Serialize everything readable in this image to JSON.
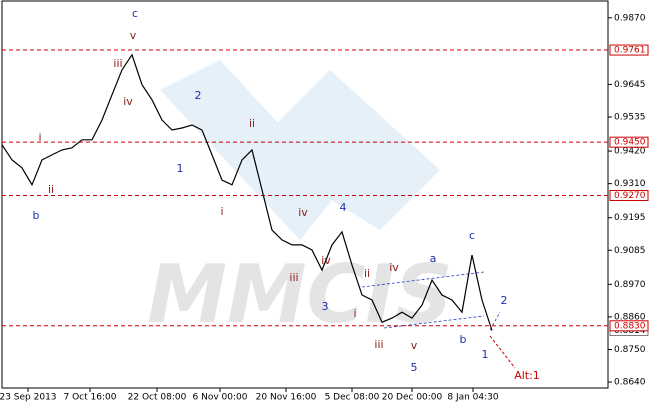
{
  "chart_data": {
    "type": "line",
    "watermark": "MMCIS",
    "x": [
      0,
      1,
      2,
      3,
      4,
      5,
      6,
      7,
      8,
      9,
      10,
      11,
      12,
      13,
      14,
      15,
      16,
      17,
      18,
      19,
      20,
      21,
      22,
      23,
      24,
      25,
      26,
      27,
      28,
      29,
      30,
      31,
      32,
      33,
      34,
      35,
      36,
      37,
      38,
      39,
      40,
      41,
      42,
      43,
      44,
      45,
      46,
      47,
      48,
      49
    ],
    "series": [
      {
        "color": "#000000",
        "values": [
          0.9441,
          0.939,
          0.9363,
          0.9306,
          0.939,
          0.9407,
          0.9424,
          0.9431,
          0.9458,
          0.9458,
          0.9525,
          0.961,
          0.9694,
          0.9745,
          0.9644,
          0.9593,
          0.9525,
          0.9491,
          0.9498,
          0.9508,
          0.9491,
          0.9407,
          0.9322,
          0.9306,
          0.939,
          0.9424,
          0.9289,
          0.9153,
          0.912,
          0.9103,
          0.9103,
          0.9086,
          0.9018,
          0.9103,
          0.9147,
          0.9035,
          0.8934,
          0.8917,
          0.8842,
          0.8856,
          0.8876,
          0.8856,
          0.89,
          0.8984,
          0.8934,
          0.8917,
          0.8876,
          0.9069,
          0.8917,
          0.8814
        ]
      }
    ],
    "xlim": [
      0,
      60.6
    ],
    "xticks": [
      {
        "value": 2.6,
        "label": "23 Sep 2013"
      },
      {
        "value": 8.8,
        "label": "7 Oct 16:00"
      },
      {
        "value": 15.5,
        "label": "22 Oct 08:00"
      },
      {
        "value": 21.8,
        "label": "6 Nov 00:00"
      },
      {
        "value": 28.4,
        "label": "20 Nov 16:00"
      },
      {
        "value": 35,
        "label": "5 Dec 08:00"
      },
      {
        "value": 41,
        "label": "20 Dec 00:00"
      },
      {
        "value": 47.1,
        "label": "8 Jan 04:30"
      }
    ],
    "ylim": [
      0.862,
      0.993
    ],
    "yticks": [
      {
        "value": 0.987,
        "label": "0.9870"
      },
      {
        "value": 0.9645,
        "label": "0.9645"
      },
      {
        "value": 0.9535,
        "label": "0.9535"
      },
      {
        "value": 0.942,
        "label": "0.9420"
      },
      {
        "value": 0.931,
        "label": "0.9310"
      },
      {
        "value": 0.9195,
        "label": "0.9195"
      },
      {
        "value": 0.9085,
        "label": "0.9085"
      },
      {
        "value": 0.897,
        "label": "0.8970"
      },
      {
        "value": 0.886,
        "label": "0.8860"
      },
      {
        "value": 0.875,
        "label": "0.8750"
      },
      {
        "value": 0.864,
        "label": "0.8640"
      }
    ],
    "levels": [
      {
        "value": 0.9761,
        "label": "0.9761"
      },
      {
        "value": 0.945,
        "label": "0.9450"
      },
      {
        "value": 0.927,
        "label": "0.9270"
      },
      {
        "value": 0.883,
        "label": "0.8830"
      }
    ],
    "level_color": "#cc0000",
    "current_price": {
      "value": 0.8814,
      "label": "0.8814"
    },
    "annotations": [
      {
        "text": "c",
        "color": "#1f2fb0"
      },
      {
        "text": "v",
        "color": "#8b1a1a"
      },
      {
        "text": "iii",
        "color": "#8b1a1a"
      },
      {
        "text": "iv",
        "color": "#8b1a1a"
      },
      {
        "text": "2",
        "color": "#1f2fb0"
      },
      {
        "text": "ii",
        "color": "#8b1a1a"
      },
      {
        "text": "i",
        "color": "#8b1a1a"
      },
      {
        "text": "ii",
        "color": "#8b1a1a"
      },
      {
        "text": "b",
        "color": "#1f2fb0"
      },
      {
        "text": "1",
        "color": "#1f2fb0"
      },
      {
        "text": "i",
        "color": "#8b1a1a"
      },
      {
        "text": "iv",
        "color": "#8b1a1a"
      },
      {
        "text": "4",
        "color": "#1f2fb0"
      },
      {
        "text": "iii",
        "color": "#8b1a1a"
      },
      {
        "text": "iv",
        "color": "#8b1a1a"
      },
      {
        "text": "3",
        "color": "#1f2fb0"
      },
      {
        "text": "ii",
        "color": "#8b1a1a"
      },
      {
        "text": "iv",
        "color": "#8b1a1a"
      },
      {
        "text": "a",
        "color": "#1f2fb0"
      },
      {
        "text": "c",
        "color": "#1f2fb0"
      },
      {
        "text": "i",
        "color": "#8b1a1a"
      },
      {
        "text": "iii",
        "color": "#8b1a1a"
      },
      {
        "text": "v",
        "color": "#8b1a1a"
      },
      {
        "text": "b",
        "color": "#1f2fb0"
      },
      {
        "text": "2",
        "color": "#1f2fb0"
      },
      {
        "text": "1",
        "color": "#1f2fb0"
      },
      {
        "text": "5",
        "color": "#1f2fb0"
      },
      {
        "text": "Alt:1",
        "color": "#cc0000"
      }
    ]
  }
}
